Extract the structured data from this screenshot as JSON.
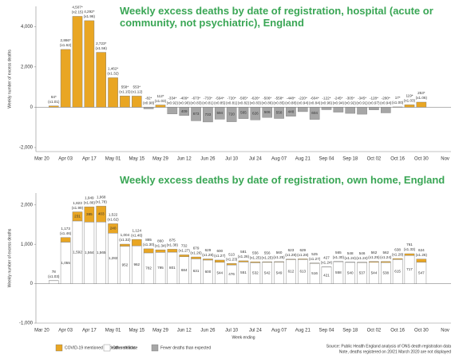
{
  "chart_data": [
    {
      "type": "bar",
      "title": "Weekly excess deaths by date of registration, hospital (acute or community, not psychiatric), England",
      "ylabel": "Weekly number of excess deaths",
      "categories": [
        "Mar 20",
        null,
        "Apr 03",
        null,
        "Apr 17",
        null,
        "May 01",
        null,
        "May 15",
        null,
        "May 29",
        null,
        "Jun 12",
        null,
        "Jun 26",
        null,
        "Jul 10",
        null,
        "Jul 24",
        null,
        "Aug 07",
        null,
        "Aug 21",
        null,
        "Sep 04",
        null,
        "Sep 18",
        null,
        "Oct 02",
        null,
        "Oct 16",
        null,
        "Oct 30",
        null,
        "Nov"
      ],
      "values": [
        null,
        64,
        2866,
        4507,
        4292,
        2723,
        1462,
        558,
        553,
        -82,
        112,
        -334,
        -409,
        -673,
        -733,
        -594,
        -720,
        -565,
        -626,
        -506,
        -558,
        -448,
        -220,
        -604,
        -122,
        -245,
        -305,
        -345,
        -128,
        -280,
        17,
        119,
        253,
        null,
        null
      ],
      "value_labels": [
        null,
        "64*",
        "2,866*",
        "4,507*",
        "4,292*",
        "2,723*",
        "1,462*",
        "558*",
        "553*",
        "-82*",
        "112*",
        "-334*",
        "-409*",
        "-673*",
        "-733*",
        "-594*",
        "-720*",
        "-565*",
        "-626*",
        "-506*",
        "-558*",
        "-448*",
        "-220*",
        "-604*",
        "-122*",
        "-245*",
        "-305*",
        "-345*",
        "-128*",
        "-280*",
        "17*",
        "119*",
        "253*",
        null,
        null
      ],
      "ratio_labels": [
        null,
        "(x1.01)",
        "(x1.62)",
        "(x2.15)",
        "(x1.96)",
        "(x1.56)",
        "(x1.32)",
        "(x1.15)",
        "(x1.12)",
        "(x0.98)",
        "(x1.03)",
        "(x0.92)",
        "(x0.90)",
        "(x0.83)",
        "(x0.81)",
        "(x0.85)",
        "(x0.81)",
        "(x0.82)",
        "(x0.83)",
        "(x0.86)",
        "(x0.85)",
        "(x0.88)",
        "(x0.94)",
        "(x0.84)",
        "(x0.96)",
        "(x0.94)",
        "(x0.92)",
        "(x0.91)",
        "(x0.97)",
        "(x0.94)",
        "(x1.00)",
        "(x1.03)",
        "(x1.06)",
        null,
        null
      ],
      "inner_labels": [
        null,
        null,
        null,
        null,
        null,
        null,
        null,
        null,
        null,
        null,
        null,
        null,
        "409",
        "673",
        "733",
        "594",
        "720",
        "565",
        "626",
        "506",
        "558",
        "448",
        null,
        "604",
        null,
        null,
        null,
        null,
        null,
        null,
        null,
        null,
        null,
        null,
        null
      ],
      "color": "#e9a623",
      "negative_color": "#a6a6a6",
      "ylim": [
        -2200,
        5000
      ],
      "yticks": [
        {
          "value": -2000,
          "label": "-2,000"
        },
        0,
        {
          "value": 2000,
          "label": "2,000"
        },
        {
          "value": 4000,
          "label": "4,000"
        }
      ]
    },
    {
      "type": "stacked_bar",
      "title": "Weekly excess deaths by date of registration, own home, England",
      "xlabel": "Week ending",
      "ylabel": "Weekly number of excess deaths",
      "categories": [
        "Mar 20",
        null,
        "Apr 03",
        null,
        "Apr 17",
        null,
        "May 01",
        null,
        "May 15",
        null,
        "May 29",
        null,
        "Jun 12",
        null,
        "Jun 26",
        null,
        "Jul 10",
        null,
        "Jul 24",
        null,
        "Aug 07",
        null,
        "Aug 21",
        null,
        "Sep 04",
        null,
        "Sep 18",
        null,
        "Oct 02",
        null,
        "Oct 16",
        null,
        "Oct 30",
        null,
        "Nov"
      ],
      "series": [
        {
          "name": "Other deaths",
          "color": "#ffffff",
          "values": [
            null,
            76,
            1055,
            1592,
            1564,
            1565,
            1282,
            952,
            962,
            782,
            795,
            801,
            684,
            631,
            600,
            544,
            476,
            551,
            532,
            542,
            549,
            612,
            613,
            516,
            421,
            558,
            540,
            537,
            544,
            538,
            615,
            717,
            547,
            null,
            null
          ],
          "value_labels": [
            null,
            null,
            "1,055",
            "1,592",
            "1,564",
            "1,565",
            "1,282",
            "952",
            "962",
            "782",
            "795",
            "801",
            "684",
            "631",
            "600",
            "544",
            "476",
            "551",
            "532",
            "542",
            "549",
            "612",
            "613",
            "516",
            "421",
            "558",
            "540",
            "537",
            "544",
            "538",
            "615",
            "717",
            "547",
            null,
            null
          ]
        },
        {
          "name": "COVID-19 mentioned on death certificate",
          "color": "#e9a623",
          "values": [
            null,
            2,
            118,
            231,
            385,
            403,
            240,
            52,
            162,
            103,
            65,
            74,
            48,
            48,
            29,
            56,
            37,
            30,
            24,
            14,
            11,
            11,
            16,
            9,
            6,
            7,
            8,
            9,
            18,
            24,
            23,
            44,
            77,
            null,
            null
          ],
          "value_labels": [
            null,
            null,
            null,
            "231",
            "385",
            "403",
            "240",
            null,
            null,
            null,
            null,
            null,
            null,
            null,
            null,
            null,
            null,
            null,
            null,
            null,
            null,
            null,
            null,
            null,
            null,
            null,
            null,
            null,
            null,
            null,
            null,
            null,
            null,
            null,
            null
          ]
        },
        {
          "name": "Fewer deaths than expected",
          "color": "#a6a6a6",
          "values": [
            null,
            null,
            null,
            null,
            null,
            null,
            null,
            null,
            null,
            null,
            null,
            null,
            null,
            null,
            null,
            null,
            null,
            null,
            null,
            null,
            null,
            null,
            null,
            null,
            null,
            null,
            null,
            null,
            null,
            null,
            null,
            null,
            null,
            null,
            null
          ]
        }
      ],
      "total_labels": [
        null,
        "78",
        "1,173",
        "1,823",
        "1,949",
        "1,968",
        "1,522",
        "1,004",
        "1,124",
        "885",
        "860",
        "875",
        "732",
        "679",
        "629",
        "600",
        "513",
        "581",
        "556",
        "556",
        "560",
        "623",
        "629",
        "525",
        "427",
        "565",
        "548",
        "546",
        "562",
        "562",
        "638",
        "761",
        "624",
        null,
        null
      ],
      "ratio_labels": [
        null,
        "(x1.03)",
        "(x1.46)",
        "(x1.99)",
        "(x1.86)",
        "(x1.78)",
        "(x1.62)",
        "(x1.32)",
        "(x1.46)",
        "(x1.30)",
        "(x1.34)",
        "(x1.38)",
        "(x1.27)",
        "(x1.26)",
        "(x1.28)",
        "(x1.27)",
        "(x1.23)",
        "(x1.26)",
        "(x1.25)",
        "(x1.25)",
        "(x1.25)",
        "(x1.28)",
        "(x1.28)",
        "(x1.27)",
        "(x1.24)",
        "(x1.30)",
        "(x1.24)",
        "(x1.24)",
        "(x1.25)",
        "(x1.24)",
        "(x1.28)",
        "(x1.33)",
        "(x1.26)",
        null,
        null
      ],
      "ylim": [
        -1000,
        2300
      ],
      "yticks": [
        {
          "value": -1000,
          "label": "-1,000"
        },
        0,
        {
          "value": 1000,
          "label": "1,000"
        },
        {
          "value": 2000,
          "label": "2,000"
        }
      ],
      "legend": "bottom-left",
      "source": [
        "Source: Public Health England analysis of ONS death registration data",
        "Note, deaths registered on 20/21 March 2020 are not displayed"
      ]
    }
  ]
}
